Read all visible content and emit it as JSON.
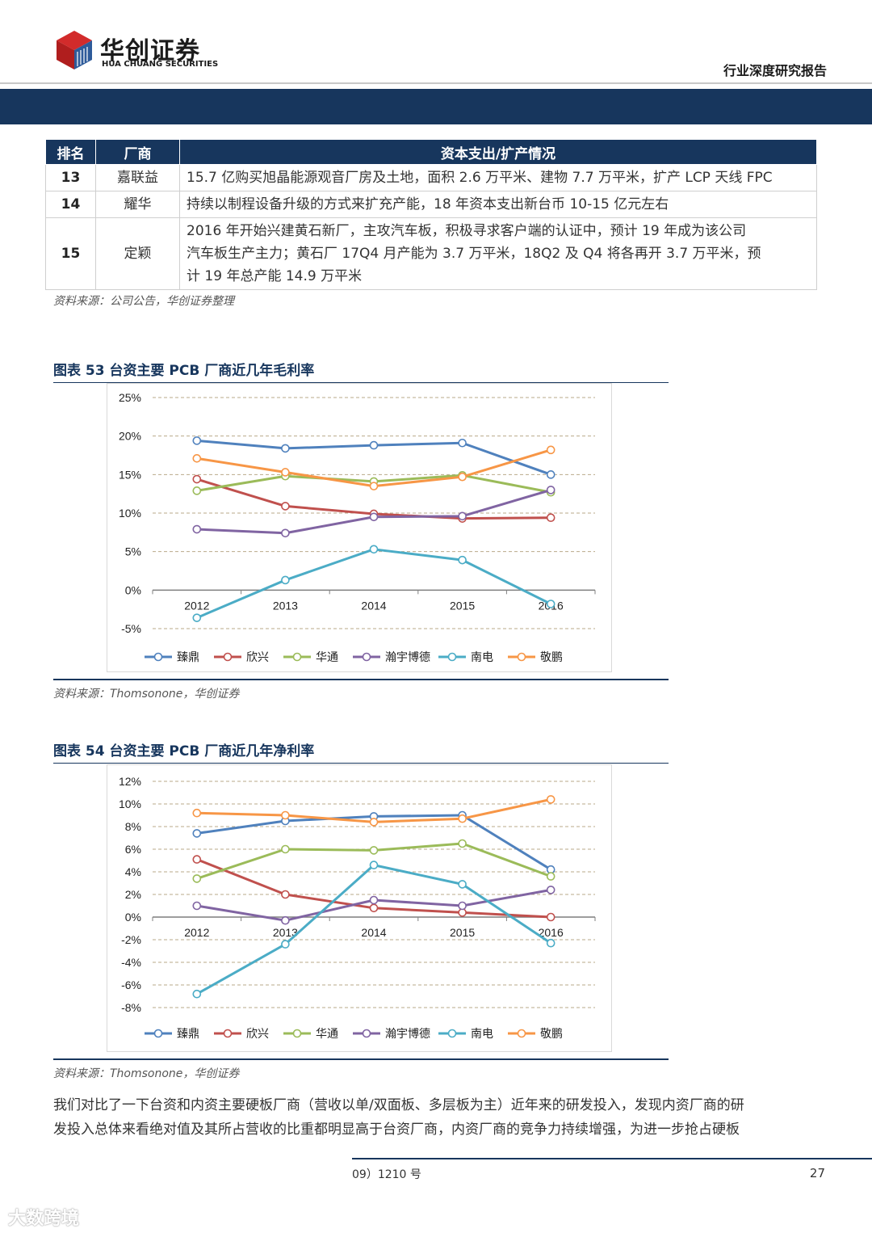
{
  "header": {
    "logo_cn": "华创证券",
    "logo_en": "HUA CHUANG SECURITIES",
    "report_type": "行业深度研究报告"
  },
  "table": {
    "headers": [
      "排名",
      "厂商",
      "资本支出/扩产情况"
    ],
    "rows": [
      {
        "rank": "13",
        "company": "嘉联益",
        "lines": [
          "15.7 亿购买旭晶能源观音厂房及土地，面积 2.6 万平米、建物 7.7 万平米，扩产 LCP 天线 FPC"
        ]
      },
      {
        "rank": "14",
        "company": "耀华",
        "lines": [
          "持续以制程设备升级的方式来扩充产能，18 年资本支出新台币 10-15 亿元左右"
        ]
      },
      {
        "rank": "15",
        "company": "定颖",
        "lines": [
          "2016 年开始兴建黄石新厂，主攻汽车板，积极寻求客户端的认证中，预计 19 年成为该公司",
          "汽车板生产主力；黄石厂 17Q4 月产能为 3.7 万平米，18Q2 及 Q4 将各再开 3.7 万平米，预",
          "计 19 年总产能 14.9 万平米"
        ]
      }
    ],
    "source": "资料来源：公司公告，华创证券整理"
  },
  "figure53": {
    "title": "图表 53    台资主要 PCB 厂商近几年毛利率",
    "source": "资料来源：Thomsonone，华创证券"
  },
  "figure54": {
    "title": "图表 54    台资主要 PCB 厂商近几年净利率",
    "source": "资料来源：Thomsonone，华创证券"
  },
  "chart_data": [
    {
      "type": "line",
      "title": "",
      "x": [
        "2012",
        "2013",
        "2014",
        "2015",
        "2016"
      ],
      "ylim": [
        -5,
        25
      ],
      "yticks": [
        "25%",
        "20%",
        "15%",
        "10%",
        "5%",
        "0%",
        "-5%"
      ],
      "ytick_values": [
        25,
        20,
        15,
        10,
        5,
        0,
        -5
      ],
      "grid": true,
      "legend": "bottom",
      "series": [
        {
          "name": "臻鼎",
          "color": "#4f81bd",
          "values": [
            19.4,
            18.4,
            18.8,
            19.1,
            15.0
          ]
        },
        {
          "name": "欣兴",
          "color": "#c0504d",
          "values": [
            14.4,
            10.9,
            9.9,
            9.3,
            9.4
          ]
        },
        {
          "name": "华通",
          "color": "#9bbb59",
          "values": [
            12.9,
            14.8,
            14.1,
            14.9,
            12.7
          ]
        },
        {
          "name": "瀚宇博德",
          "color": "#8064a2",
          "values": [
            7.9,
            7.4,
            9.5,
            9.6,
            13.0
          ]
        },
        {
          "name": "南电",
          "color": "#4bacc6",
          "values": [
            -3.6,
            1.3,
            5.3,
            3.9,
            -1.8
          ]
        },
        {
          "name": "敬鹏",
          "color": "#f79646",
          "values": [
            17.1,
            15.3,
            13.5,
            14.7,
            18.2
          ]
        }
      ]
    },
    {
      "type": "line",
      "title": "",
      "x": [
        "2012",
        "2013",
        "2014",
        "2015",
        "2016"
      ],
      "ylim": [
        -8,
        12
      ],
      "yticks": [
        "12%",
        "10%",
        "8%",
        "6%",
        "4%",
        "2%",
        "0%",
        "-2%",
        "-4%",
        "-6%",
        "-8%"
      ],
      "ytick_values": [
        12,
        10,
        8,
        6,
        4,
        2,
        0,
        -2,
        -4,
        -6,
        -8
      ],
      "grid": true,
      "legend": "bottom",
      "series": [
        {
          "name": "臻鼎",
          "color": "#4f81bd",
          "values": [
            7.4,
            8.5,
            8.9,
            9.0,
            4.2
          ]
        },
        {
          "name": "欣兴",
          "color": "#c0504d",
          "values": [
            5.1,
            2.0,
            0.8,
            0.4,
            0.0
          ]
        },
        {
          "name": "华通",
          "color": "#9bbb59",
          "values": [
            3.4,
            6.0,
            5.9,
            6.5,
            3.6
          ]
        },
        {
          "name": "瀚宇博德",
          "color": "#8064a2",
          "values": [
            1.0,
            -0.3,
            1.5,
            1.0,
            2.4
          ]
        },
        {
          "name": "南电",
          "color": "#4bacc6",
          "values": [
            -6.8,
            -2.4,
            4.6,
            2.9,
            -2.3
          ]
        },
        {
          "name": "敬鹏",
          "color": "#f79646",
          "values": [
            9.2,
            9.0,
            8.4,
            8.7,
            10.4
          ]
        }
      ]
    }
  ],
  "paragraph": [
    "我们对比了一下台资和内资主要硬板厂商（营收以单/双面板、多层板为主）近年来的研发投入，发现内资厂商的研",
    "发投入总体来看绝对值及其所占营收的比重都明显高于台资厂商，内资厂商的竞争力持续增强，为进一步抢占硬板"
  ],
  "footer": {
    "left_text": "09）1210 号",
    "page": "27"
  },
  "watermark": "大数跨境"
}
